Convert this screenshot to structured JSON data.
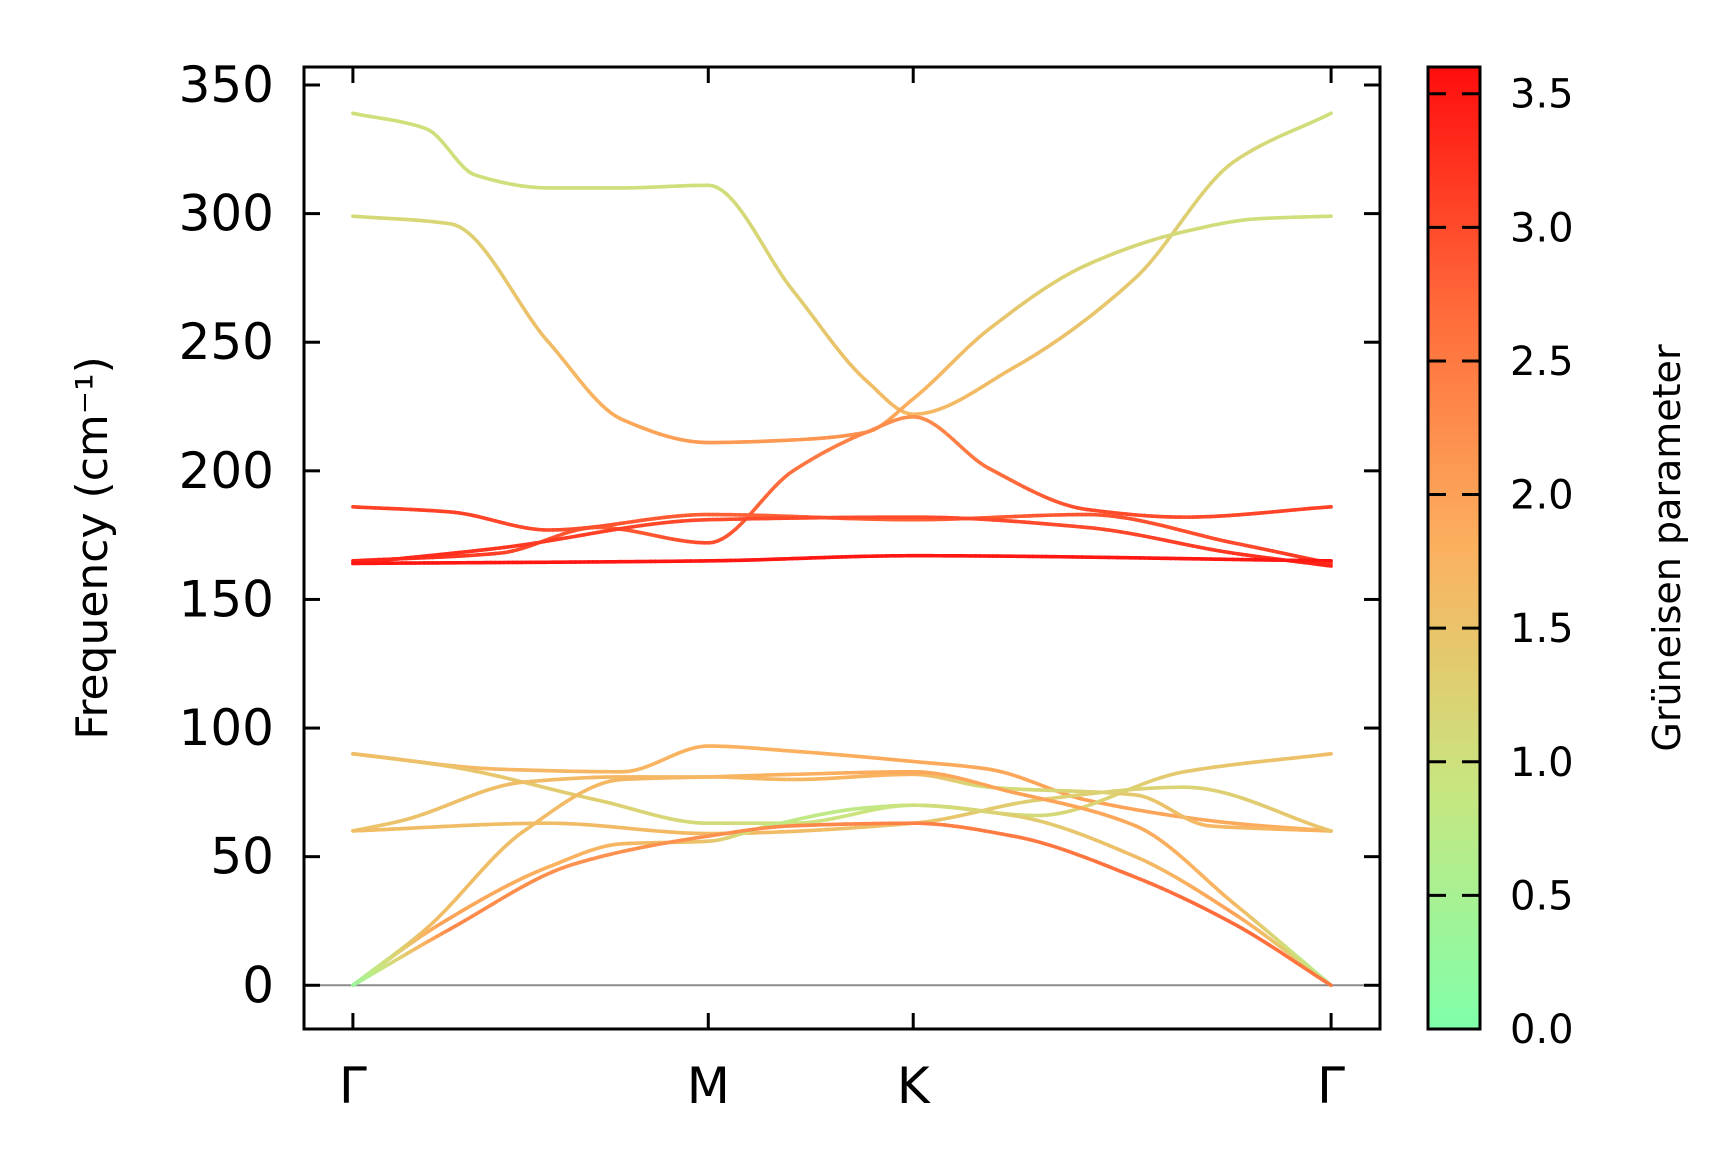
{
  "chart_data": {
    "type": "line",
    "title": "",
    "xlabel": "",
    "ylabel": "Frequency (cm⁻¹)",
    "ylim": [
      -17,
      357
    ],
    "yticks": [
      0,
      50,
      100,
      150,
      200,
      250,
      300,
      350
    ],
    "xlim": [
      -0.1,
      2.1
    ],
    "xticks": [
      {
        "pos": 0,
        "label": "Γ"
      },
      {
        "pos": 0.7266,
        "label": "M"
      },
      {
        "pos": 1.1456,
        "label": "K"
      },
      {
        "pos": 2.0,
        "label": "Γ"
      }
    ],
    "zero_line": true,
    "grid": false,
    "colorbar": {
      "label": "Grüneisen parameter",
      "range": [
        0,
        3.6
      ],
      "ticks": [
        0.0,
        0.5,
        1.0,
        1.5,
        2.0,
        2.5,
        3.0,
        3.5
      ],
      "tick_labels": [
        "0.0",
        "0.5",
        "1.0",
        "1.5",
        "2.0",
        "2.5",
        "3.0",
        "3.5"
      ],
      "stops": [
        {
          "value": 0.0,
          "color": "#80ffaa"
        },
        {
          "value": 0.9,
          "color": "#c8e680"
        },
        {
          "value": 1.8,
          "color": "#fbb15f"
        },
        {
          "value": 2.7,
          "color": "#ff6a3a"
        },
        {
          "value": 3.6,
          "color": "#ff0d0d"
        }
      ]
    },
    "series": [
      {
        "x": [
          0,
          0.15,
          0.25,
          0.4,
          0.55,
          0.7266,
          0.9,
          1.05,
          1.1456,
          1.35,
          1.6,
          1.8,
          2.0
        ],
        "y": [
          339,
          333,
          315,
          310,
          310,
          311,
          270,
          235,
          222,
          240,
          275,
          320,
          339
        ],
        "gamma": [
          1.0,
          1.0,
          1.0,
          1.0,
          1.0,
          1.0,
          1.3,
          1.6,
          1.7,
          1.6,
          1.4,
          1.2,
          1.0
        ]
      },
      {
        "x": [
          0,
          0.2,
          0.4,
          0.55,
          0.7266,
          0.9,
          1.05,
          1.1456,
          1.3,
          1.5,
          1.7,
          1.85,
          2.0
        ],
        "y": [
          299,
          296,
          250,
          220,
          211,
          212,
          215,
          228,
          255,
          280,
          293,
          298,
          299
        ],
        "gamma": [
          1.1,
          1.2,
          1.6,
          1.9,
          2.1,
          2.1,
          2.2,
          1.8,
          1.5,
          1.2,
          1.1,
          1.0,
          1.0
        ]
      },
      {
        "x": [
          0,
          0.3,
          0.5,
          0.7266,
          0.9,
          1.05,
          1.1456,
          1.3,
          1.5,
          1.7,
          2.0
        ],
        "y": [
          165,
          168,
          178,
          172,
          200,
          215,
          221,
          201,
          185,
          182,
          186
        ],
        "gamma": [
          3.4,
          3.1,
          2.8,
          3.0,
          2.6,
          2.3,
          2.2,
          2.6,
          3.0,
          3.0,
          3.1
        ]
      },
      {
        "x": [
          0,
          0.2,
          0.4,
          0.7266,
          1.1456,
          1.5,
          1.8,
          2.0
        ],
        "y": [
          186,
          184,
          177,
          183,
          181,
          183,
          172,
          164
        ],
        "gamma": [
          3.1,
          3.1,
          3.0,
          2.8,
          2.8,
          2.9,
          3.0,
          3.2
        ]
      },
      {
        "x": [
          0,
          0.3,
          0.7266,
          1.1456,
          1.5,
          1.8,
          2.0
        ],
        "y": [
          164,
          170,
          181,
          182,
          178,
          168,
          163
        ],
        "gamma": [
          3.4,
          3.2,
          3.0,
          3.0,
          3.0,
          3.2,
          3.4
        ]
      },
      {
        "x": [
          0,
          0.7266,
          1.1456,
          2.0
        ],
        "y": [
          164,
          165,
          167,
          165
        ],
        "gamma": [
          3.5,
          3.5,
          3.5,
          3.5
        ]
      },
      {
        "x": [
          0,
          0.3,
          0.55,
          0.7266,
          0.9,
          1.1456,
          1.3,
          1.5,
          1.8,
          2.0
        ],
        "y": [
          90,
          84,
          83,
          93,
          91,
          87,
          84,
          72,
          63,
          60
        ],
        "gamma": [
          1.7,
          1.7,
          1.7,
          1.8,
          1.8,
          1.9,
          1.9,
          2.0,
          1.9,
          1.8
        ]
      },
      {
        "x": [
          0,
          0.2,
          0.5,
          0.7266,
          0.9,
          1.1456,
          1.4,
          1.7,
          2.0
        ],
        "y": [
          90,
          85,
          72,
          63,
          63,
          70,
          66,
          83,
          90
        ],
        "gamma": [
          1.6,
          1.5,
          1.3,
          1.1,
          1.0,
          0.9,
          1.1,
          1.4,
          1.6
        ]
      },
      {
        "x": [
          0,
          0.1,
          0.35,
          0.55,
          0.7266,
          0.9,
          1.1456,
          1.3,
          1.6,
          1.75,
          1.85,
          2.0
        ],
        "y": [
          60,
          64,
          79,
          81,
          81,
          80,
          82,
          77,
          74,
          62,
          61,
          60
        ],
        "gamma": [
          1.5,
          1.5,
          1.6,
          1.7,
          1.7,
          1.7,
          1.8,
          1.0,
          1.4,
          1.7,
          1.7,
          1.8
        ]
      },
      {
        "x": [
          0,
          0.4,
          0.7266,
          1.1456,
          1.4,
          1.7,
          2.0
        ],
        "y": [
          60,
          63,
          59,
          63,
          72,
          77,
          60
        ],
        "gamma": [
          1.6,
          1.6,
          1.7,
          1.5,
          1.3,
          1.2,
          1.5
        ]
      },
      {
        "x": [
          0,
          0.15,
          0.35,
          0.55,
          0.7266,
          0.9,
          1.1456,
          1.35,
          1.6,
          1.8,
          2.0
        ],
        "y": [
          0,
          22,
          60,
          80,
          81,
          82,
          83,
          75,
          62,
          32,
          0
        ],
        "gamma": [
          0.3,
          1.6,
          1.6,
          1.7,
          1.7,
          1.8,
          1.9,
          2.0,
          1.9,
          1.7,
          0.5
        ]
      },
      {
        "x": [
          0,
          0.18,
          0.4,
          0.55,
          0.7266,
          0.85,
          1.05,
          1.1456,
          1.35,
          1.6,
          1.8,
          2.0
        ],
        "y": [
          0,
          24,
          46,
          55,
          56,
          62,
          69,
          70,
          66,
          50,
          28,
          0
        ],
        "gamma": [
          0.5,
          2.0,
          1.8,
          1.7,
          1.5,
          0.8,
          0.8,
          1.0,
          1.3,
          1.6,
          2.0,
          0.8
        ]
      },
      {
        "x": [
          0,
          0.2,
          0.45,
          0.7266,
          0.9,
          1.1456,
          1.35,
          1.6,
          1.8,
          2.0
        ],
        "y": [
          0,
          22,
          47,
          58,
          62,
          63,
          58,
          42,
          24,
          0
        ],
        "gamma": [
          0.3,
          2.3,
          2.2,
          2.2,
          2.3,
          2.4,
          2.5,
          2.6,
          2.7,
          2.5
        ]
      }
    ]
  }
}
